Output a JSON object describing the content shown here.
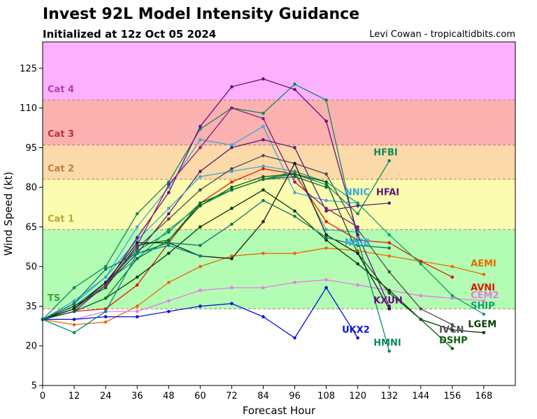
{
  "header": {
    "title": "Invest 92L Model Intensity Guidance",
    "subtitle": "Initialized at 12z Oct 05 2024",
    "credit": "Levi Cowan - tropicaltidbits.com"
  },
  "chart_data": {
    "type": "line",
    "title": "Invest 92L Model Intensity Guidance",
    "subtitle": "Initialized at 12z Oct 05 2024",
    "xlabel": "Forecast Hour",
    "ylabel": "Wind Speed (kt)",
    "xlim": [
      0,
      180
    ],
    "ylim": [
      5,
      135
    ],
    "xticks": [
      0,
      12,
      24,
      36,
      48,
      60,
      72,
      84,
      96,
      108,
      120,
      132,
      144,
      156,
      168
    ],
    "yticks": [
      5,
      20,
      35,
      50,
      65,
      80,
      95,
      110,
      125
    ],
    "grid": false,
    "legend": "none",
    "bands": [
      {
        "label": "TS",
        "from": 34,
        "to": 64,
        "color": "#b3fcb3",
        "label_color": "#3aa13a",
        "label_y": 37
      },
      {
        "label": "Cat 1",
        "from": 64,
        "to": 83,
        "color": "#fcfcb0",
        "label_color": "#b5a836",
        "label_y": 67
      },
      {
        "label": "Cat 2",
        "from": 83,
        "to": 96,
        "color": "#fcd9a8",
        "label_color": "#b4823d",
        "label_y": 86
      },
      {
        "label": "Cat 3",
        "from": 96,
        "to": 113,
        "color": "#fcb1b1",
        "label_color": "#b53535",
        "label_y": 99
      },
      {
        "label": "Cat 4",
        "from": 113,
        "to": 135,
        "color": "#fcb1fc",
        "label_color": "#b53cb5",
        "label_y": 116
      }
    ],
    "series": [
      {
        "name": "HFBI",
        "color": "#0c8a5e",
        "label_at": [
          126,
          92
        ],
        "x": [
          0,
          12,
          24,
          36,
          48,
          60,
          72,
          84,
          96,
          108,
          120,
          132
        ],
        "y": [
          30,
          35,
          44,
          56,
          63,
          74,
          79,
          83,
          85,
          81,
          70,
          90
        ]
      },
      {
        "name": "NNIC",
        "color": "#3aa8d8",
        "label_at": [
          115,
          77
        ],
        "x": [
          0,
          12,
          24,
          36,
          48,
          60,
          72,
          84,
          96,
          108,
          120
        ],
        "y": [
          30,
          36,
          46,
          65,
          80,
          98,
          96,
          103,
          78,
          75,
          74
        ]
      },
      {
        "name": "HFAI",
        "color": "#5a1a7a",
        "label_at": [
          127,
          77
        ],
        "x": [
          0,
          12,
          24,
          36,
          48,
          60,
          72,
          84,
          96,
          108,
          120,
          132
        ],
        "y": [
          30,
          34,
          43,
          55,
          70,
          86,
          95,
          98,
          95,
          71,
          73,
          74
        ]
      },
      {
        "name": "NNIB",
        "color": "#3aa8d8",
        "label_at": [
          115,
          58
        ],
        "x": [
          0,
          12,
          24,
          36,
          48,
          60,
          72,
          84,
          96,
          108,
          120
        ],
        "y": [
          30,
          37,
          46,
          60,
          72,
          84,
          86,
          88,
          86,
          64,
          63
        ]
      },
      {
        "name": "AEMI",
        "color": "#e86a00",
        "label_at": [
          163,
          50
        ],
        "x": [
          0,
          12,
          24,
          36,
          48,
          60,
          72,
          84,
          96,
          108,
          120,
          132,
          144,
          156,
          168
        ],
        "y": [
          30,
          28,
          29,
          35,
          44,
          50,
          54,
          55,
          55,
          57,
          56,
          54,
          52,
          50,
          47
        ]
      },
      {
        "name": "AVNI",
        "color": "#e01b00",
        "label_at": [
          163,
          41
        ],
        "x": [
          0,
          12,
          24,
          36,
          48,
          60,
          72,
          84,
          96,
          108,
          120,
          132,
          144,
          156
        ],
        "y": [
          30,
          33,
          34,
          43,
          59,
          74,
          82,
          87,
          85,
          67,
          60,
          59,
          52,
          46
        ]
      },
      {
        "name": "CEM2",
        "color": "#ea78ea",
        "label_at": [
          163,
          38
        ],
        "x": [
          0,
          12,
          24,
          36,
          48,
          60,
          72,
          84,
          96,
          108,
          120,
          132,
          144,
          156,
          168
        ],
        "y": [
          30,
          30,
          33,
          33,
          37,
          41,
          42,
          42,
          44,
          45,
          43,
          41,
          39,
          38,
          37
        ]
      },
      {
        "name": "SHIP",
        "color": "#13a06a",
        "label_at": [
          163,
          34
        ],
        "x": [
          0,
          12,
          24,
          36,
          48,
          60,
          72,
          84,
          96,
          108,
          120,
          132,
          144,
          156,
          168
        ],
        "y": [
          30,
          34,
          44,
          53,
          64,
          73,
          79,
          83,
          86,
          82,
          74,
          62,
          51,
          39,
          32
        ]
      },
      {
        "name": "LGEM",
        "color": "#063b06",
        "label_at": [
          162,
          27
        ],
        "x": [
          0,
          12,
          24,
          36,
          48,
          60,
          72,
          84,
          96,
          108,
          120,
          132,
          144,
          156,
          168
        ],
        "y": [
          30,
          33,
          38,
          46,
          55,
          65,
          72,
          79,
          71,
          60,
          51,
          41,
          30,
          26,
          25
        ]
      },
      {
        "name": "IVCN",
        "color": "#4d4d4d",
        "label_at": [
          151,
          25
        ],
        "x": [
          0,
          12,
          24,
          36,
          48,
          60,
          72,
          84,
          96,
          108,
          120,
          132,
          144,
          156
        ],
        "y": [
          30,
          34,
          43,
          57,
          68,
          79,
          87,
          92,
          89,
          85,
          64,
          48,
          34,
          28
        ]
      },
      {
        "name": "DSHP",
        "color": "#0d5e0d",
        "label_at": [
          151,
          21
        ],
        "x": [
          0,
          12,
          24,
          36,
          48,
          60,
          72,
          84,
          96,
          108,
          120,
          132,
          144,
          156
        ],
        "y": [
          30,
          35,
          42,
          58,
          60,
          73,
          80,
          84,
          85,
          82,
          55,
          40,
          30,
          19
        ]
      },
      {
        "name": "UKX2",
        "color": "#0a14d8",
        "label_at": [
          114,
          25
        ],
        "x": [
          0,
          12,
          24,
          36,
          48,
          60,
          72,
          84,
          96,
          108,
          120
        ],
        "y": [
          30,
          30,
          31,
          31,
          33,
          35,
          36,
          31,
          23,
          42,
          23
        ]
      },
      {
        "name": "HMNI",
        "color": "#0c8a5e",
        "label_at": [
          126,
          20
        ],
        "x": [
          0,
          12,
          24,
          36,
          48,
          60,
          72,
          84,
          96,
          108,
          120,
          132
        ],
        "y": [
          30,
          42,
          50,
          70,
          82,
          102,
          110,
          108,
          119,
          113,
          60,
          18
        ]
      },
      {
        "name": "KXUH",
        "color": "#6a0a8a",
        "label_at": [
          126,
          36
        ],
        "x": [
          0,
          12,
          24,
          36,
          48,
          60,
          72,
          84,
          96,
          108,
          120,
          132
        ],
        "y": [
          30,
          33,
          43,
          61,
          78,
          103,
          118,
          121,
          117,
          105,
          62,
          35
        ]
      },
      {
        "name": "",
        "color": "#1a1a1a",
        "label_at": null,
        "x": [
          0,
          12,
          24,
          36,
          48,
          60,
          72,
          84,
          96,
          108,
          120,
          132
        ],
        "y": [
          30,
          34,
          44,
          59,
          59,
          54,
          53,
          67,
          89,
          62,
          55,
          34
        ]
      },
      {
        "name": "",
        "color": "#8a1a7a",
        "label_at": null,
        "x": [
          0,
          12,
          24,
          36,
          48,
          60,
          72,
          84,
          96,
          108,
          120
        ],
        "y": [
          30,
          33,
          43,
          58,
          81,
          95,
          110,
          106,
          82,
          72,
          65
        ]
      },
      {
        "name": "",
        "color": "#0c7a5e",
        "label_at": null,
        "x": [
          0,
          12,
          24,
          36,
          48,
          60,
          72,
          84,
          96,
          108,
          120,
          132
        ],
        "y": [
          30,
          36,
          49,
          55,
          59,
          58,
          66,
          75,
          69,
          61,
          58,
          57
        ]
      },
      {
        "name": "",
        "color": "#05723a",
        "label_at": null,
        "x": [
          0,
          12,
          24,
          36,
          48,
          60,
          72,
          84,
          96,
          108
        ],
        "y": [
          30,
          33,
          38,
          53,
          60,
          74,
          79,
          83,
          84,
          80
        ]
      },
      {
        "name": "",
        "color": "#00877a",
        "label_at": null,
        "x": [
          0,
          12,
          24,
          36,
          48,
          60
        ],
        "y": [
          30,
          25,
          33,
          55,
          58,
          54
        ]
      }
    ]
  }
}
